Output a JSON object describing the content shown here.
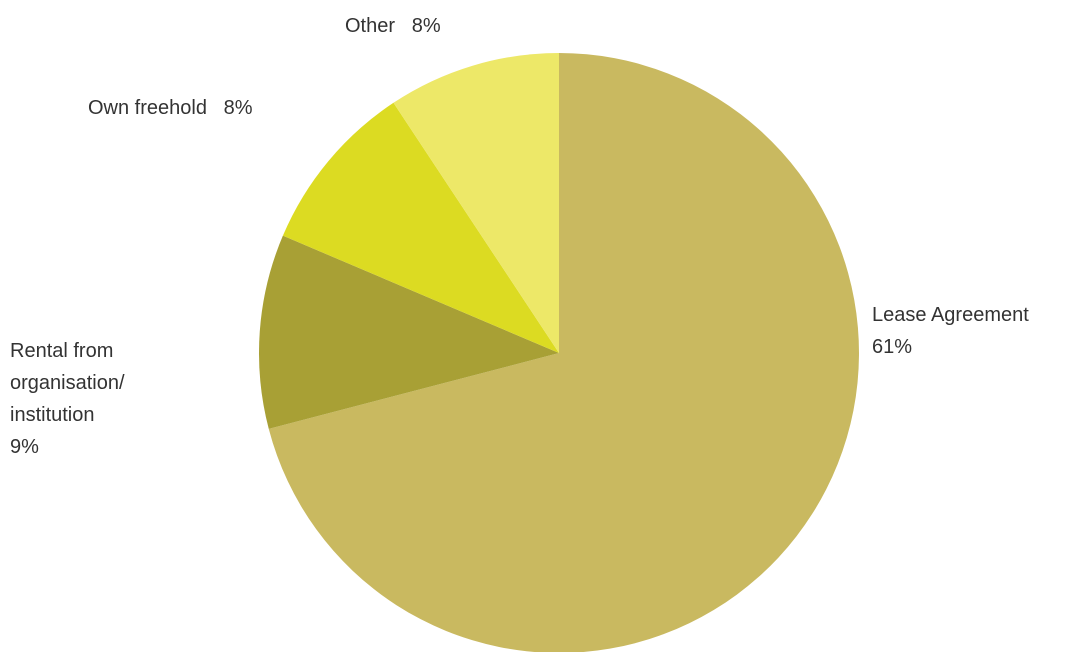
{
  "chart_data": {
    "type": "pie",
    "title": "",
    "start": "12 o'clock",
    "direction": "clockwise",
    "slices": [
      {
        "label": "Lease Agreement",
        "label_lines": [
          "Lease Agreement",
          "61%"
        ],
        "value": 61,
        "display": "61%",
        "color": "#c9b960"
      },
      {
        "label": "Rental from organisation/ institution",
        "label_lines": [
          "Rental from",
          "organisation/",
          "institution",
          "9%"
        ],
        "value": 9,
        "display": "9%",
        "color": "#a8a035"
      },
      {
        "label": "Own freehold",
        "label_lines": [
          "Own freehold   8%"
        ],
        "value": 8,
        "display": "8%",
        "color": "#dcdb22"
      },
      {
        "label": "Other",
        "label_lines": [
          "Other   8%"
        ],
        "value": 8,
        "display": "8%",
        "color": "#ede868"
      }
    ]
  }
}
